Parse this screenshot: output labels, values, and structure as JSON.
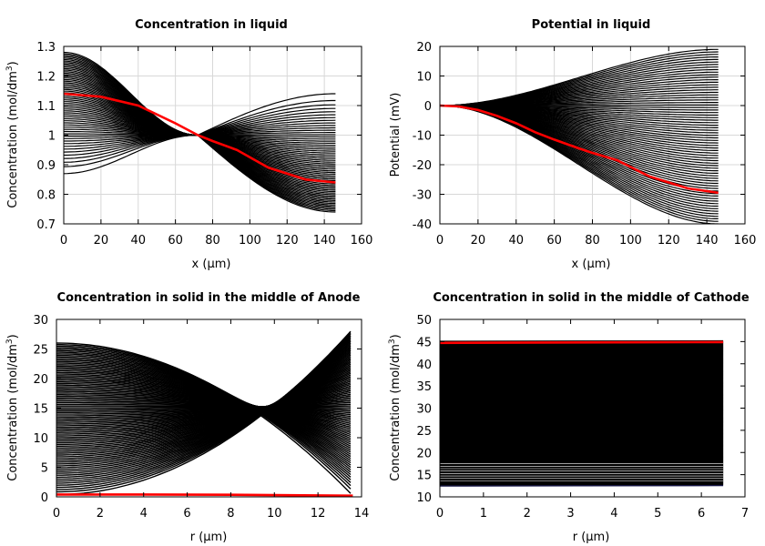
{
  "chart_data": [
    {
      "type": "line",
      "title": "Concentration in liquid",
      "xlabel": "x (µm)",
      "ylabel_main": "Concentration (mol/dm",
      "ylabel_sup": "3",
      "ylabel_tail": ")",
      "xlim": [
        0,
        160
      ],
      "ylim": [
        0.7,
        1.3
      ],
      "xticks": [
        0,
        20,
        40,
        60,
        80,
        100,
        120,
        140,
        160
      ],
      "yticks": [
        0.7,
        0.8,
        0.9,
        1,
        1.1,
        1.2,
        1.3
      ],
      "xtick_labels": [
        "0",
        "20",
        "40",
        "60",
        "80",
        "100",
        "120",
        "140",
        "160"
      ],
      "ytick_labels": [
        "0.7",
        "0.8",
        "0.9",
        "1",
        "1.1",
        "1.2",
        "1.3"
      ],
      "grid": true,
      "highlight_color": "#ff0000",
      "curve_color": "#000000",
      "x_end": 146,
      "crossover_x": 72,
      "highlight": {
        "x": [
          0,
          20,
          40,
          60,
          72,
          80,
          93,
          110,
          130,
          146
        ],
        "y": [
          1.14,
          1.13,
          1.1,
          1.04,
          1.0,
          0.98,
          0.95,
          0.89,
          0.85,
          0.84
        ]
      },
      "left_range": [
        0.87,
        1.28
      ],
      "right_range": [
        0.74,
        1.14
      ]
    },
    {
      "type": "line",
      "title": "Potential in liquid",
      "xlabel": "x (µm)",
      "ylabel_main": "Potential (mV)",
      "xlim": [
        0,
        160
      ],
      "ylim": [
        -40,
        20
      ],
      "xticks": [
        0,
        20,
        40,
        60,
        80,
        100,
        120,
        140,
        160
      ],
      "yticks": [
        -40,
        -30,
        -20,
        -10,
        0,
        10,
        20
      ],
      "xtick_labels": [
        "0",
        "20",
        "40",
        "60",
        "80",
        "100",
        "120",
        "140",
        "160"
      ],
      "ytick_labels": [
        "-40",
        "-30",
        "-20",
        "-10",
        "0",
        "10",
        "20"
      ],
      "grid": true,
      "highlight_color": "#ff0000",
      "curve_color": "#000000",
      "x_end": 146,
      "highlight": {
        "x": [
          0,
          10,
          20,
          30,
          40,
          50,
          60,
          73,
          80,
          93,
          110,
          130,
          146
        ],
        "y": [
          0,
          -0.3,
          -1.5,
          -3.5,
          -6,
          -9,
          -11.5,
          -14.5,
          -16,
          -18.5,
          -24,
          -28,
          -29.5
        ]
      },
      "end_range": [
        -40,
        19
      ]
    },
    {
      "type": "line",
      "title": "Concentration in solid in the middle of Anode",
      "xlabel": "r (µm)",
      "ylabel_main": "Concentration (mol/dm",
      "ylabel_sup": "3",
      "ylabel_tail": ")",
      "xlim": [
        0,
        14
      ],
      "ylim": [
        0,
        30
      ],
      "xticks": [
        0,
        2,
        4,
        6,
        8,
        10,
        12,
        14
      ],
      "yticks": [
        0,
        5,
        10,
        15,
        20,
        25,
        30
      ],
      "xtick_labels": [
        "0",
        "2",
        "4",
        "6",
        "8",
        "10",
        "12",
        "14"
      ],
      "ytick_labels": [
        "0",
        "5",
        "10",
        "15",
        "20",
        "25",
        "30"
      ],
      "grid": false,
      "highlight_color": "#ff0000",
      "curve_color": "#000000",
      "x_end": 13.6,
      "highlight": {
        "x": [
          0,
          4,
          8,
          12,
          13.6
        ],
        "y": [
          0.4,
          0.4,
          0.35,
          0.25,
          0.2
        ]
      },
      "start_range": [
        0.4,
        26
      ],
      "end_range": [
        0.2,
        28.4
      ]
    },
    {
      "type": "line",
      "title": "Concentration in solid in the middle of Cathode",
      "xlabel": "r (µm)",
      "ylabel_main": "Concentration (mol/dm",
      "ylabel_sup": "3",
      "ylabel_tail": ")",
      "xlim": [
        0,
        7
      ],
      "ylim": [
        10,
        50
      ],
      "xticks": [
        0,
        1,
        2,
        3,
        4,
        5,
        6,
        7
      ],
      "yticks": [
        10,
        15,
        20,
        25,
        30,
        35,
        40,
        45,
        50
      ],
      "xtick_labels": [
        "0",
        "1",
        "2",
        "3",
        "4",
        "5",
        "6",
        "7"
      ],
      "ytick_labels": [
        "10",
        "15",
        "20",
        "25",
        "30",
        "35",
        "40",
        "45",
        "50"
      ],
      "grid": false,
      "highlight_color": "#ff0000",
      "curve_color": "#000000",
      "x_end": 6.5,
      "highlight": {
        "x": [
          0,
          6.5
        ],
        "y": [
          44.7,
          44.9
        ]
      },
      "low_color": "#1a1a4a",
      "value_range": [
        12.6,
        44.9
      ]
    }
  ]
}
